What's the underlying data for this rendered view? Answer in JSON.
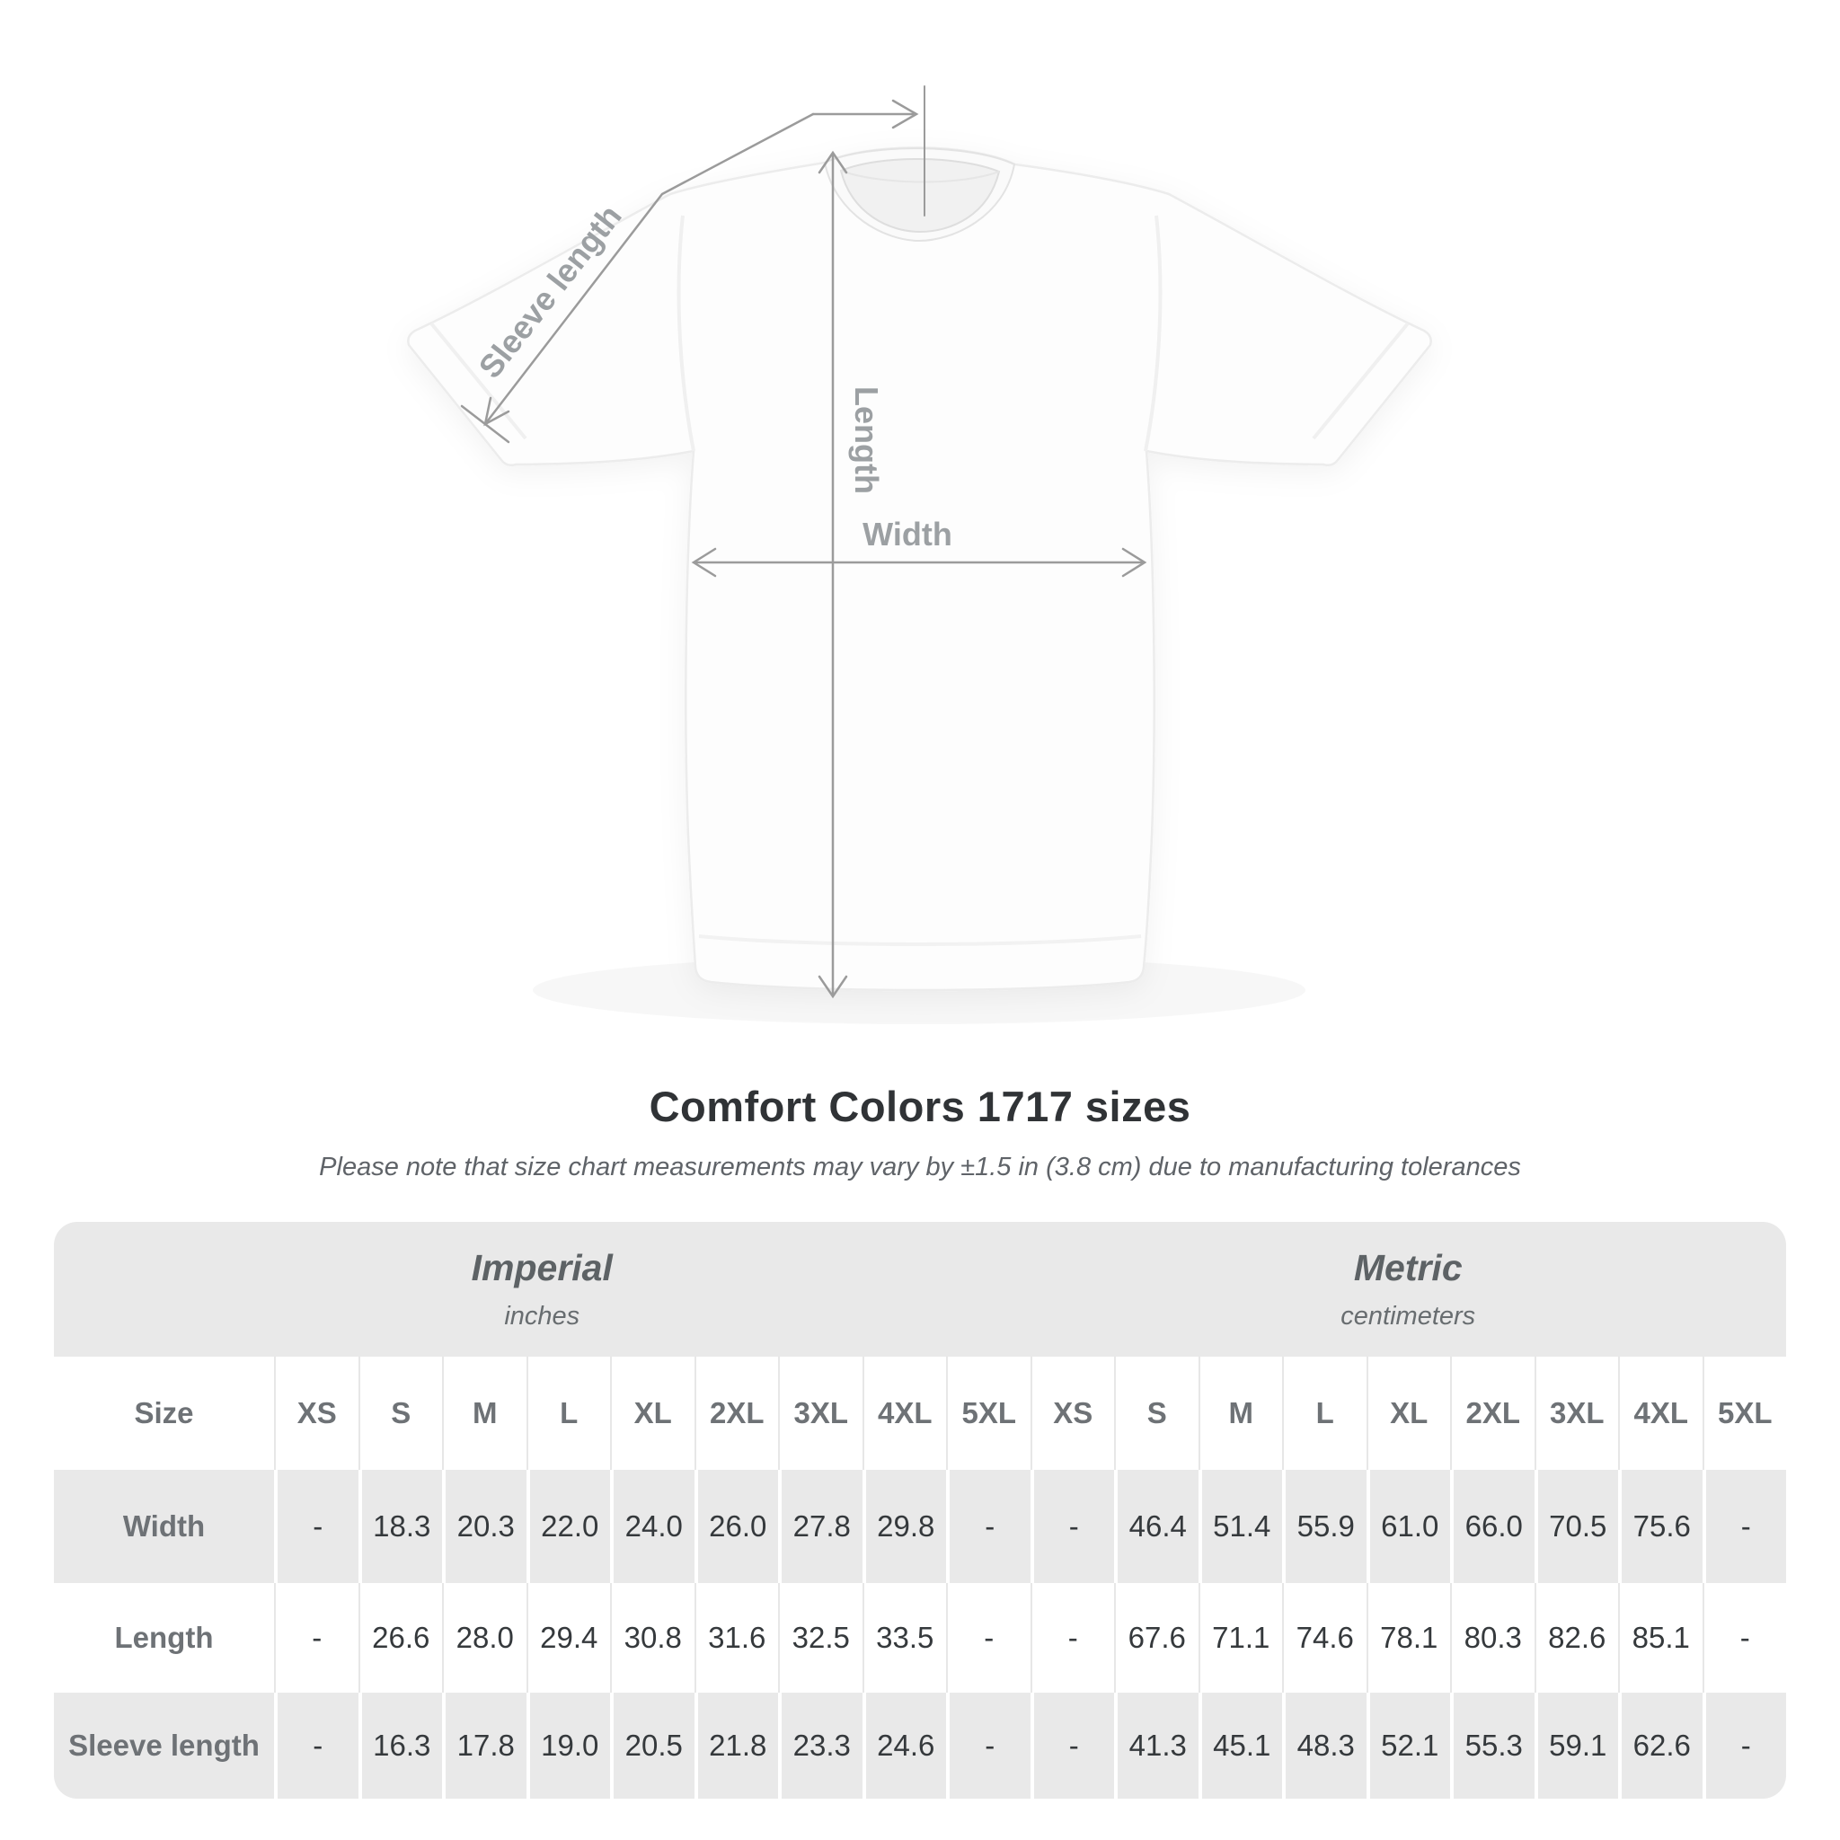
{
  "title": "Comfort Colors 1717 sizes",
  "subtitle": "Please note that size chart measurements may vary by ±1.5 in (3.8 cm) due to manufacturing tolerances",
  "figure": {
    "sleeve_label": "Sleeve length",
    "length_label": "Length",
    "width_label": "Width"
  },
  "chart_data": {
    "type": "table",
    "title": "Comfort Colors 1717 sizes",
    "note": "Please note that size chart measurements may vary by ±1.5 in (3.8 cm) due to manufacturing tolerances",
    "unit_groups": [
      {
        "label": "Imperial",
        "sublabel": "inches"
      },
      {
        "label": "Metric",
        "sublabel": "centimeters"
      }
    ],
    "size_header": "Size",
    "sizes": [
      "XS",
      "S",
      "M",
      "L",
      "XL",
      "2XL",
      "3XL",
      "4XL",
      "5XL"
    ],
    "rows": [
      {
        "label": "Width",
        "imperial": [
          "-",
          "18.3",
          "20.3",
          "22.0",
          "24.0",
          "26.0",
          "27.8",
          "29.8",
          "-"
        ],
        "metric": [
          "-",
          "46.4",
          "51.4",
          "55.9",
          "61.0",
          "66.0",
          "70.5",
          "75.6",
          "-"
        ]
      },
      {
        "label": "Length",
        "imperial": [
          "-",
          "26.6",
          "28.0",
          "29.4",
          "30.8",
          "31.6",
          "32.5",
          "33.5",
          "-"
        ],
        "metric": [
          "-",
          "67.6",
          "71.1",
          "74.6",
          "78.1",
          "80.3",
          "82.6",
          "85.1",
          "-"
        ]
      },
      {
        "label": "Sleeve length",
        "imperial": [
          "-",
          "16.3",
          "17.8",
          "19.0",
          "20.5",
          "21.8",
          "23.3",
          "24.6",
          "-"
        ],
        "metric": [
          "-",
          "41.3",
          "45.1",
          "48.3",
          "52.1",
          "55.3",
          "59.1",
          "62.6",
          "-"
        ]
      }
    ]
  },
  "colors": {
    "annotation_line": "#9b9b9b",
    "annotation_text": "#9ca0a3",
    "row_gray": "#e9e9e9",
    "label_text": "#6e7276",
    "value_text": "#35393c"
  }
}
